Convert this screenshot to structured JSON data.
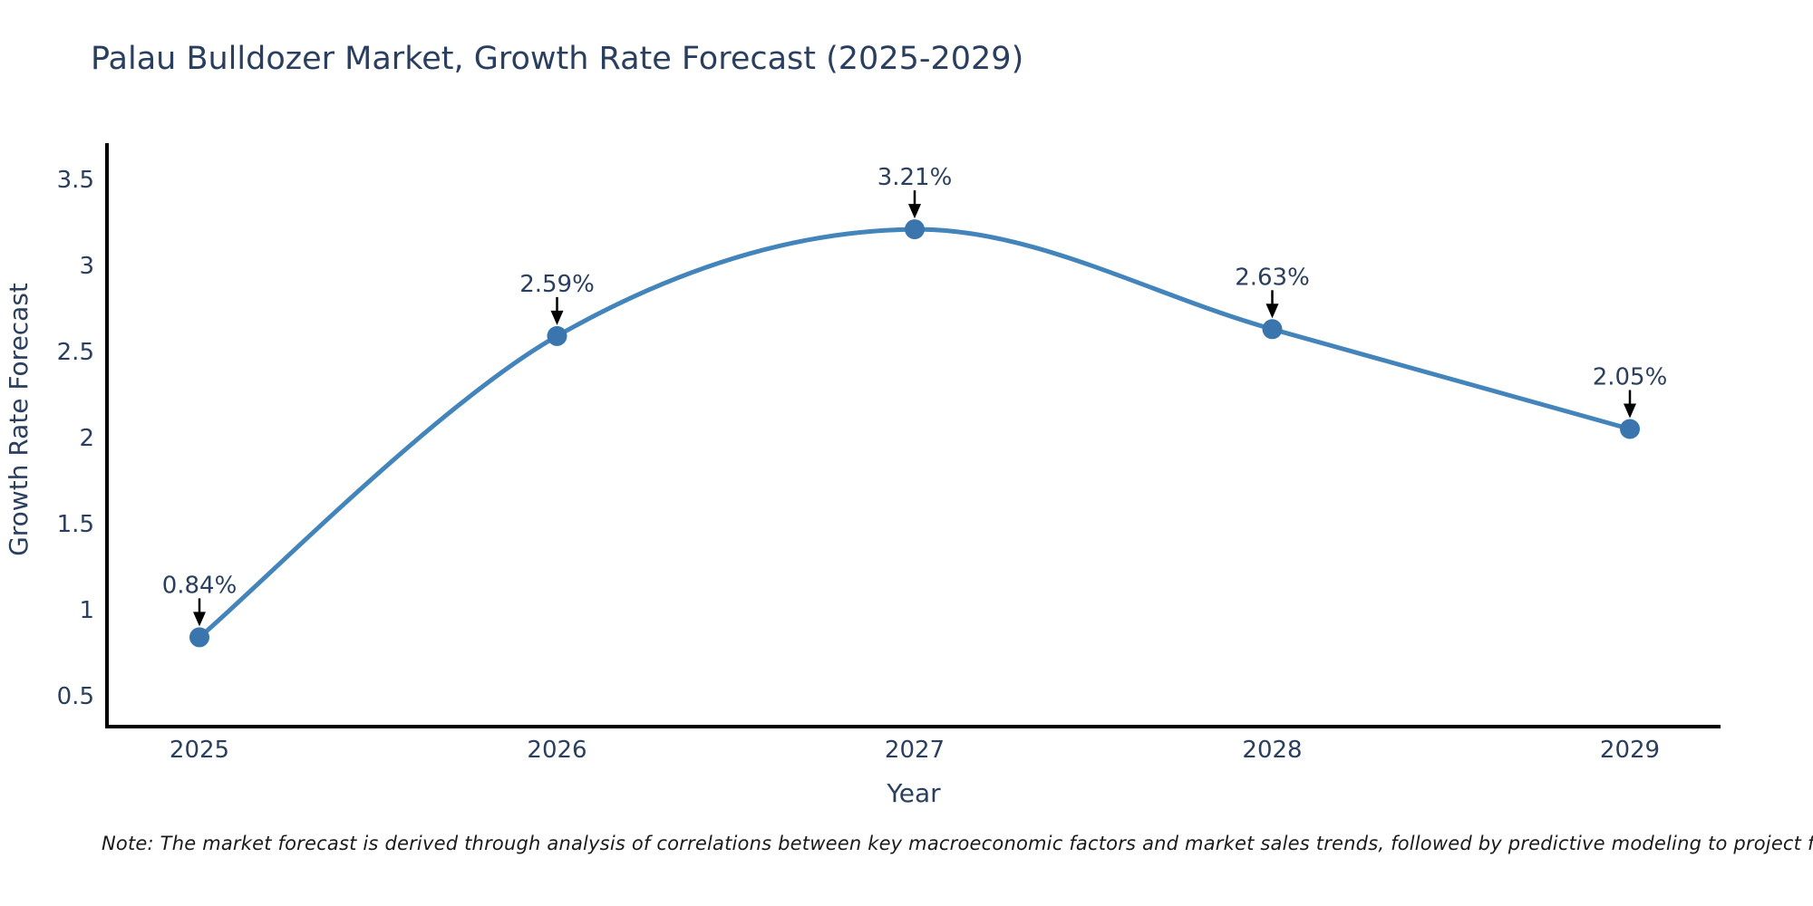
{
  "title": "Palau Bulldozer Market, Growth Rate Forecast (2025-2029)",
  "note": "Note: The market forecast is derived through analysis of correlations between key macroeconomic factors and market sales trends, followed by predictive modeling to project future sales",
  "chart_data": {
    "type": "line",
    "title": "Palau Bulldozer Market, Growth Rate Forecast (2025-2029)",
    "xlabel": "Year",
    "ylabel": "Growth Rate Forecast",
    "x": [
      2025,
      2026,
      2027,
      2028,
      2029
    ],
    "series": [
      {
        "name": "Growth Rate Forecast",
        "values": [
          0.84,
          2.59,
          3.21,
          2.63,
          2.05
        ]
      }
    ],
    "point_labels": [
      "0.84%",
      "2.59%",
      "3.21%",
      "2.63%",
      "2.05%"
    ],
    "yticks": [
      0.5,
      1,
      1.5,
      2,
      2.5,
      3,
      3.5
    ],
    "ylim": [
      0.3,
      3.7
    ],
    "grid": false,
    "legend": "none",
    "curve": "spline",
    "annotation_arrows": true,
    "colors": {
      "line": "#4384bb",
      "marker": "#3a76ad",
      "axis": "#000000",
      "text": "#2a3f5f",
      "arrow": "#000000"
    }
  }
}
